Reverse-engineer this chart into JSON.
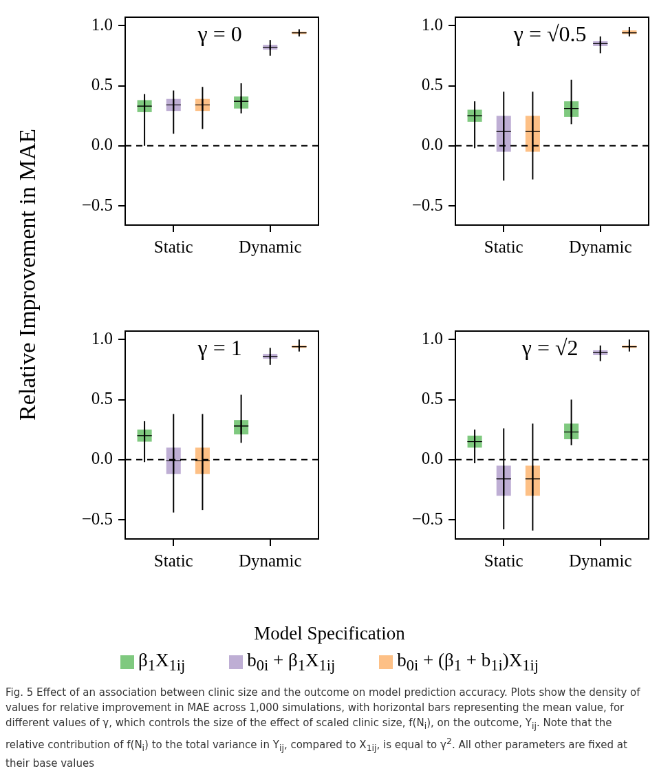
{
  "chart_data": [
    {
      "type": "box",
      "title": "γ = 0",
      "ylabel": "Relative Improvement in MAE",
      "categories": [
        "Static",
        "Dynamic"
      ],
      "ylim": [
        -0.66,
        1.07
      ],
      "yticks": [
        {
          "value": -0.5,
          "label": "−0.5"
        },
        {
          "value": 0,
          "label": "0.0"
        },
        {
          "value": 0.5,
          "label": "0.5"
        },
        {
          "value": 1,
          "label": "1.0"
        }
      ],
      "ref_lines": [
        {
          "axis": "y",
          "value": 0,
          "line_style": "dashed"
        }
      ],
      "series": [
        {
          "color": "#7fc97f",
          "boxes": [
            {
              "low": 0.0,
              "q1": 0.28,
              "median": 0.33,
              "q3": 0.38,
              "high": 0.43,
              "mean": 0.33
            },
            {
              "low": 0.27,
              "q1": 0.31,
              "median": 0.37,
              "q3": 0.41,
              "high": 0.52,
              "mean": 0.37
            }
          ]
        },
        {
          "color": "#beaed4",
          "boxes": [
            {
              "low": 0.1,
              "q1": 0.29,
              "median": 0.34,
              "q3": 0.39,
              "high": 0.46,
              "mean": 0.34
            },
            {
              "low": 0.75,
              "q1": 0.8,
              "median": 0.82,
              "q3": 0.84,
              "high": 0.88,
              "mean": 0.82
            }
          ]
        },
        {
          "color": "#fdc086",
          "boxes": [
            {
              "low": 0.14,
              "q1": 0.29,
              "median": 0.34,
              "q3": 0.39,
              "high": 0.49,
              "mean": 0.34
            },
            {
              "low": 0.91,
              "q1": 0.93,
              "median": 0.94,
              "q3": 0.95,
              "high": 0.97,
              "mean": 0.94
            }
          ]
        }
      ]
    },
    {
      "type": "box",
      "title": "γ = √0.5",
      "categories": [
        "Static",
        "Dynamic"
      ],
      "ylim": [
        -0.66,
        1.07
      ],
      "yticks": [
        {
          "value": -0.5,
          "label": "−0.5"
        },
        {
          "value": 0,
          "label": "0.0"
        },
        {
          "value": 0.5,
          "label": "0.5"
        },
        {
          "value": 1,
          "label": "1.0"
        }
      ],
      "ref_lines": [
        {
          "axis": "y",
          "value": 0,
          "line_style": "dashed"
        }
      ],
      "series": [
        {
          "color": "#7fc97f",
          "boxes": [
            {
              "low": -0.02,
              "q1": 0.2,
              "median": 0.25,
              "q3": 0.3,
              "high": 0.37,
              "mean": 0.25
            },
            {
              "low": 0.18,
              "q1": 0.24,
              "median": 0.31,
              "q3": 0.37,
              "high": 0.55,
              "mean": 0.31
            }
          ]
        },
        {
          "color": "#beaed4",
          "boxes": [
            {
              "low": -0.29,
              "q1": -0.05,
              "median": 0.12,
              "q3": 0.25,
              "high": 0.45,
              "mean": 0.12
            },
            {
              "low": 0.77,
              "q1": 0.83,
              "median": 0.85,
              "q3": 0.87,
              "high": 0.91,
              "mean": 0.85
            }
          ]
        },
        {
          "color": "#fdc086",
          "boxes": [
            {
              "low": -0.28,
              "q1": -0.05,
              "median": 0.12,
              "q3": 0.25,
              "high": 0.45,
              "mean": 0.12
            },
            {
              "low": 0.91,
              "q1": 0.93,
              "median": 0.94,
              "q3": 0.96,
              "high": 0.99,
              "mean": 0.94
            }
          ]
        }
      ]
    },
    {
      "type": "box",
      "title": "γ = 1",
      "categories": [
        "Static",
        "Dynamic"
      ],
      "ylim": [
        -0.66,
        1.07
      ],
      "yticks": [
        {
          "value": -0.5,
          "label": "−0.5"
        },
        {
          "value": 0,
          "label": "0.0"
        },
        {
          "value": 0.5,
          "label": "0.5"
        },
        {
          "value": 1,
          "label": "1.0"
        }
      ],
      "ref_lines": [
        {
          "axis": "y",
          "value": 0,
          "line_style": "dashed"
        }
      ],
      "series": [
        {
          "color": "#7fc97f",
          "boxes": [
            {
              "low": -0.02,
              "q1": 0.15,
              "median": 0.2,
              "q3": 0.25,
              "high": 0.32,
              "mean": 0.2
            },
            {
              "low": 0.14,
              "q1": 0.21,
              "median": 0.28,
              "q3": 0.33,
              "high": 0.54,
              "mean": 0.28
            }
          ]
        },
        {
          "color": "#beaed4",
          "boxes": [
            {
              "low": -0.44,
              "q1": -0.12,
              "median": -0.01,
              "q3": 0.1,
              "high": 0.38,
              "mean": -0.01
            },
            {
              "low": 0.79,
              "q1": 0.84,
              "median": 0.86,
              "q3": 0.88,
              "high": 0.93,
              "mean": 0.86
            }
          ]
        },
        {
          "color": "#fdc086",
          "boxes": [
            {
              "low": -0.42,
              "q1": -0.12,
              "median": -0.01,
              "q3": 0.1,
              "high": 0.38,
              "mean": -0.01
            },
            {
              "low": 0.9,
              "q1": 0.93,
              "median": 0.94,
              "q3": 0.95,
              "high": 1.0,
              "mean": 0.94
            }
          ]
        }
      ]
    },
    {
      "type": "box",
      "title": "γ = √2",
      "legend": "bottom",
      "legend_title": "Model Specification",
      "categories": [
        "Static",
        "Dynamic"
      ],
      "ylim": [
        -0.66,
        1.07
      ],
      "yticks": [
        {
          "value": -0.5,
          "label": "−0.5"
        },
        {
          "value": 0,
          "label": "0.0"
        },
        {
          "value": 0.5,
          "label": "0.5"
        },
        {
          "value": 1,
          "label": "1.0"
        }
      ],
      "ref_lines": [
        {
          "axis": "y",
          "value": 0,
          "line_style": "dashed"
        }
      ],
      "annotations": [
        "Fig. 5 Effect of an association between clinic size and the outcome on model prediction accuracy. Plots show the density of values for relative improvement in MAE across 1,000 simulations, with horizontal bars representing the mean value, for different values of γ, which controls the size of the effect of scaled clinic size, f(N$_{i}$), on the outcome, Y$_{ij}$. Note that the relative contribution of f(N$_{i}$) to the total variance in Y$_{ij}$, compared to X$_{1ij}$, is equal to γ$^{2}$. All other parameters are fixed at their base values"
      ],
      "series": [
        {
          "name": "β$_{1}$X$_{1ij}$",
          "color": "#7fc97f",
          "boxes": [
            {
              "low": -0.03,
              "q1": 0.1,
              "median": 0.15,
              "q3": 0.2,
              "high": 0.25,
              "mean": 0.15
            },
            {
              "low": 0.12,
              "q1": 0.17,
              "median": 0.23,
              "q3": 0.3,
              "high": 0.5,
              "mean": 0.23
            }
          ]
        },
        {
          "name": "b$_{0i}$ + β$_{1}$X$_{1ij}$",
          "color": "#beaed4",
          "boxes": [
            {
              "low": -0.58,
              "q1": -0.3,
              "median": -0.16,
              "q3": -0.05,
              "high": 0.26,
              "mean": -0.16
            },
            {
              "low": 0.82,
              "q1": 0.87,
              "median": 0.89,
              "q3": 0.91,
              "high": 0.95,
              "mean": 0.89
            }
          ]
        },
        {
          "name": "b$_{0i}$ + (β$_{1}$ + b$_{1i}$)X$_{1ij}$",
          "color": "#fdc086",
          "boxes": [
            {
              "low": -0.59,
              "q1": -0.3,
              "median": -0.16,
              "q3": -0.05,
              "high": 0.3,
              "mean": -0.16
            },
            {
              "low": 0.9,
              "q1": 0.93,
              "median": 0.94,
              "q3": 0.95,
              "high": 1.0,
              "mean": 0.94
            }
          ]
        }
      ]
    }
  ]
}
